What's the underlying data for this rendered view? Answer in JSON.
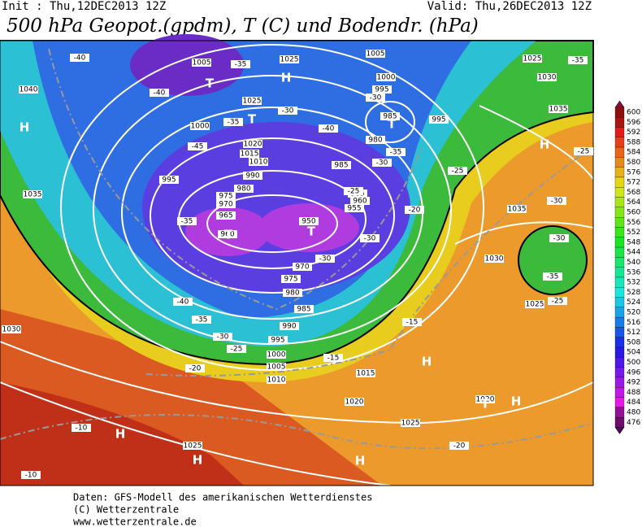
{
  "header": {
    "init": "Init : Thu,12DEC2013 12Z",
    "valid": "Valid: Thu,26DEC2013 12Z",
    "title": "500 hPa Geopot.(gpdm), T (C) und Bodendr. (hPa)"
  },
  "map": {
    "isobars": [
      1005,
      1025,
      1005,
      1000,
      995,
      985,
      995,
      1025,
      1000,
      1020,
      1015,
      1010,
      990,
      985,
      995,
      980,
      975,
      970,
      965,
      960,
      965,
      960,
      955,
      950,
      970,
      975,
      980,
      985,
      990,
      995,
      1000,
      1005,
      1010,
      1015,
      1020,
      1025,
      1025,
      1030,
      1035,
      1040,
      1025,
      1030,
      1035,
      1035,
      1030,
      1025,
      1020,
      980
    ],
    "isotherms": [
      -40,
      -40,
      -35,
      -30,
      -35,
      -40,
      -45,
      -30,
      -35,
      -30,
      -25,
      -20,
      -25,
      -30,
      -30,
      -35,
      -40,
      -35,
      -30,
      -25,
      -20,
      -15,
      -15,
      -10,
      -10,
      -30,
      -35,
      -25,
      -25,
      -30,
      -35,
      -20
    ],
    "systems": [
      "H",
      "T",
      "H",
      "T",
      "T",
      "T",
      "T",
      "H",
      "H",
      "H",
      "H",
      "H",
      "H",
      "T"
    ]
  },
  "colorbar": {
    "ticks": [
      600,
      596,
      592,
      588,
      584,
      580,
      576,
      572,
      568,
      564,
      560,
      556,
      552,
      548,
      544,
      540,
      536,
      532,
      528,
      524,
      520,
      516,
      512,
      508,
      504,
      500,
      496,
      492,
      488,
      484,
      480,
      476
    ]
  },
  "footer": {
    "lines": [
      "Daten: GFS-Modell des amerikanischen Wetterdienstes",
      "(C) Wetterzentrale",
      "www.wetterzentrale.de"
    ]
  }
}
